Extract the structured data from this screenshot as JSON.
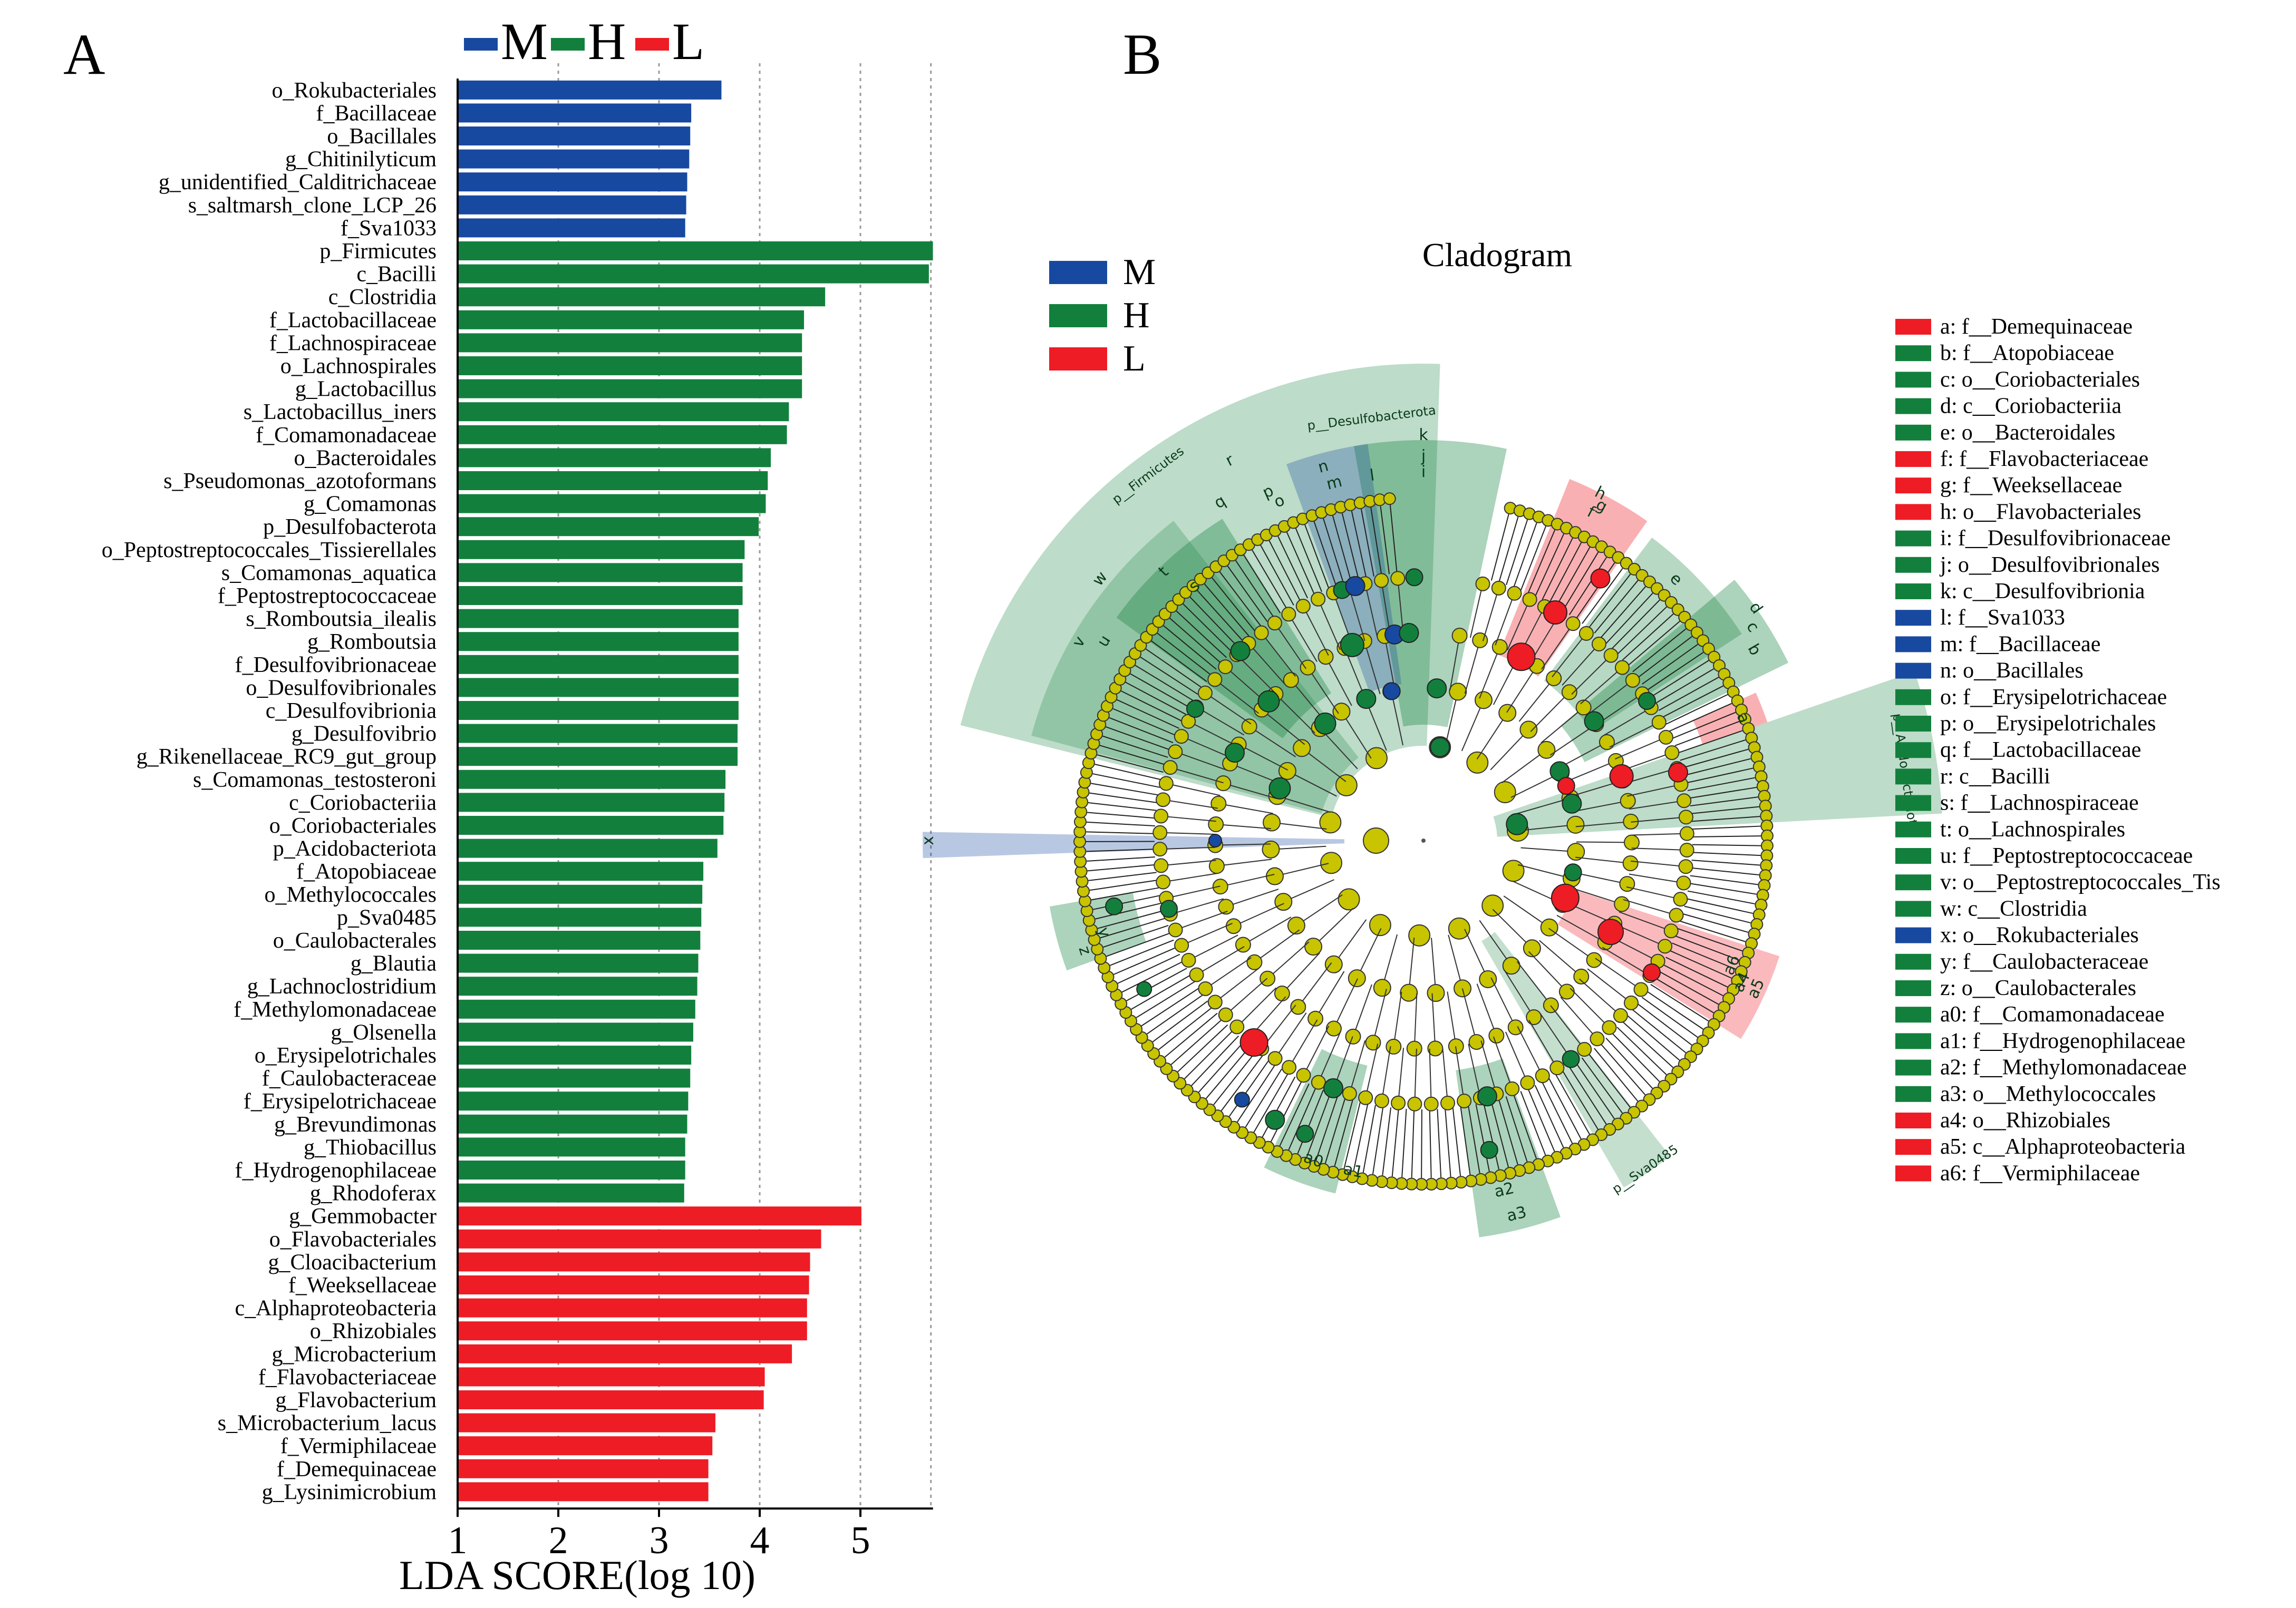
{
  "colors": {
    "M": "#1849a0",
    "H": "#12803c",
    "L": "#ee1c24",
    "node": "#c8c400",
    "H_shade": "#bfe6d0",
    "M_shade": "#c6d4ef",
    "L_shade": "#f8c6ca"
  },
  "panel_a": {
    "letter": "A",
    "legend": [
      {
        "key": "M",
        "label": "M"
      },
      {
        "key": "H",
        "label": "H"
      },
      {
        "key": "L",
        "label": "L"
      }
    ]
  },
  "panel_b": {
    "letter": "B",
    "title": "Cladogram",
    "legend": [
      {
        "key": "M",
        "label": "M"
      },
      {
        "key": "H",
        "label": "H"
      },
      {
        "key": "L",
        "label": "L"
      }
    ],
    "clade_labels": [
      "p__Firmicutes",
      "p__Desulfobacterota",
      "p__Acidobacteriota",
      "p__Sva0485",
      "a",
      "b",
      "c",
      "d",
      "e",
      "f",
      "g",
      "h",
      "i",
      "j",
      "k",
      "l",
      "m",
      "n",
      "o",
      "p",
      "q",
      "r",
      "s",
      "t",
      "u",
      "v",
      "w",
      "x",
      "y",
      "z",
      "a0",
      "a1",
      "a2",
      "a3",
      "a4",
      "a5",
      "a6"
    ],
    "key_list": [
      {
        "text": "a: f__Demequinaceae",
        "g": "L"
      },
      {
        "text": "b: f__Atopobiaceae",
        "g": "H"
      },
      {
        "text": "c: o__Coriobacteriales",
        "g": "H"
      },
      {
        "text": "d: c__Coriobacteriia",
        "g": "H"
      },
      {
        "text": "e: o__Bacteroidales",
        "g": "H"
      },
      {
        "text": "f: f__Flavobacteriaceae",
        "g": "L"
      },
      {
        "text": "g: f__Weeksellaceae",
        "g": "L"
      },
      {
        "text": "h: o__Flavobacteriales",
        "g": "L"
      },
      {
        "text": "i: f__Desulfovibrionaceae",
        "g": "H"
      },
      {
        "text": "j: o__Desulfovibrionales",
        "g": "H"
      },
      {
        "text": "k: c__Desulfovibrionia",
        "g": "H"
      },
      {
        "text": "l: f__Sva1033",
        "g": "M"
      },
      {
        "text": "m: f__Bacillaceae",
        "g": "M"
      },
      {
        "text": "n: o__Bacillales",
        "g": "M"
      },
      {
        "text": "o: f__Erysipelotrichaceae",
        "g": "H"
      },
      {
        "text": "p: o__Erysipelotrichales",
        "g": "H"
      },
      {
        "text": "q: f__Lactobacillaceae",
        "g": "H"
      },
      {
        "text": "r: c__Bacilli",
        "g": "H"
      },
      {
        "text": "s: f__Lachnospiraceae",
        "g": "H"
      },
      {
        "text": "t: o__Lachnospirales",
        "g": "H"
      },
      {
        "text": "u: f__Peptostreptococcaceae",
        "g": "H"
      },
      {
        "text": "v: o__Peptostreptococcales_Tis",
        "g": "H"
      },
      {
        "text": "w: c__Clostridia",
        "g": "H"
      },
      {
        "text": "x: o__Rokubacteriales",
        "g": "M"
      },
      {
        "text": "y: f__Caulobacteraceae",
        "g": "H"
      },
      {
        "text": "z: o__Caulobacterales",
        "g": "H"
      },
      {
        "text": "a0: f__Comamonadaceae",
        "g": "H"
      },
      {
        "text": "a1: f__Hydrogenophilaceae",
        "g": "H"
      },
      {
        "text": "a2: f__Methylomonadaceae",
        "g": "H"
      },
      {
        "text": "a3: o__Methylococcales",
        "g": "H"
      },
      {
        "text": "a4: o__Rhizobiales",
        "g": "L"
      },
      {
        "text": "a5: c__Alphaproteobacteria",
        "g": "L"
      },
      {
        "text": "a6: f__Vermiphilaceae",
        "g": "L"
      }
    ]
  },
  "chart_data": [
    {
      "type": "bar",
      "orientation": "horizontal",
      "xlabel": "LDA SCORE(log 10)",
      "xlim": [
        1,
        5.7
      ],
      "xticks": [
        1,
        2,
        3,
        4,
        5
      ],
      "grid": "vertical dotted lines",
      "legend_position": "top",
      "categories": [
        "o_Rokubacteriales",
        "f_Bacillaceae",
        "o_Bacillales",
        "g_Chitinilyticum",
        "g_unidentified_Calditrichaceae",
        "s_saltmarsh_clone_LCP_26",
        "f_Sva1033",
        "p_Firmicutes",
        "c_Bacilli",
        "c_Clostridia",
        "f_Lactobacillaceae",
        "f_Lachnospiraceae",
        "o_Lachnospirales",
        "g_Lactobacillus",
        "s_Lactobacillus_iners",
        "f_Comamonadaceae",
        "o_Bacteroidales",
        "s_Pseudomonas_azotoformans",
        "g_Comamonas",
        "p_Desulfobacterota",
        "o_Peptostreptococcales_Tissierellales",
        "s_Comamonas_aquatica",
        "f_Peptostreptococcaceae",
        "s_Romboutsia_ilealis",
        "g_Romboutsia",
        "f_Desulfovibrionaceae",
        "o_Desulfovibrionales",
        "c_Desulfovibrionia",
        "g_Desulfovibrio",
        "g_Rikenellaceae_RC9_gut_group",
        "s_Comamonas_testosteroni",
        "c_Coriobacteriia",
        "o_Coriobacteriales",
        "p_Acidobacteriota",
        "f_Atopobiaceae",
        "o_Methylococcales",
        "p_Sva0485",
        "o_Caulobacterales",
        "g_Blautia",
        "g_Lachnoclostridium",
        "f_Methylomonadaceae",
        "g_Olsenella",
        "o_Erysipelotrichales",
        "f_Caulobacteraceae",
        "f_Erysipelotrichaceae",
        "g_Brevundimonas",
        "g_Thiobacillus",
        "f_Hydrogenophilaceae",
        "g_Rhodoferax",
        "g_Gemmobacter",
        "o_Flavobacteriales",
        "g_Cloacibacterium",
        "f_Weeksellaceae",
        "c_Alphaproteobacteria",
        "o_Rhizobiales",
        "g_Microbacterium",
        "f_Flavobacteriaceae",
        "g_Flavobacterium",
        "s_Microbacterium_lacus",
        "f_Vermiphilaceae",
        "f_Demequinaceae",
        "g_Lysinimicrobium"
      ],
      "values": [
        3.62,
        3.32,
        3.31,
        3.3,
        3.28,
        3.27,
        3.26,
        5.72,
        5.68,
        4.65,
        4.44,
        4.42,
        4.42,
        4.42,
        4.29,
        4.27,
        4.11,
        4.08,
        4.06,
        3.99,
        3.85,
        3.83,
        3.83,
        3.79,
        3.79,
        3.79,
        3.79,
        3.79,
        3.78,
        3.78,
        3.66,
        3.65,
        3.64,
        3.58,
        3.44,
        3.43,
        3.42,
        3.41,
        3.39,
        3.38,
        3.36,
        3.34,
        3.32,
        3.31,
        3.29,
        3.28,
        3.26,
        3.26,
        3.25,
        5.01,
        4.61,
        4.5,
        4.49,
        4.47,
        4.47,
        4.32,
        4.05,
        4.04,
        3.56,
        3.53,
        3.49,
        3.49
      ],
      "groups": [
        "M",
        "M",
        "M",
        "M",
        "M",
        "M",
        "M",
        "H",
        "H",
        "H",
        "H",
        "H",
        "H",
        "H",
        "H",
        "H",
        "H",
        "H",
        "H",
        "H",
        "H",
        "H",
        "H",
        "H",
        "H",
        "H",
        "H",
        "H",
        "H",
        "H",
        "H",
        "H",
        "H",
        "H",
        "H",
        "H",
        "H",
        "H",
        "H",
        "H",
        "H",
        "H",
        "H",
        "H",
        "H",
        "H",
        "H",
        "H",
        "H",
        "L",
        "L",
        "L",
        "L",
        "L",
        "L",
        "L",
        "L",
        "L",
        "L",
        "L",
        "L",
        "L"
      ],
      "series": [
        {
          "name": "M"
        },
        {
          "name": "H"
        },
        {
          "name": "L"
        }
      ]
    }
  ]
}
